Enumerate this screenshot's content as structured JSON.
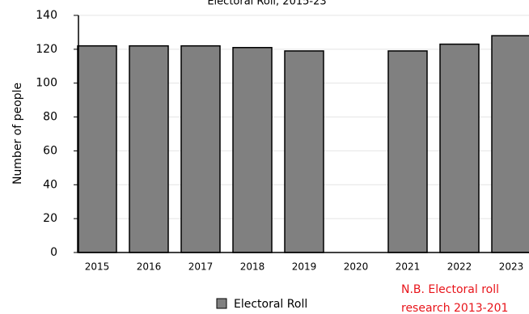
{
  "chart_data": {
    "type": "bar",
    "title": "Electoral Roll, 2015-23",
    "y_label": "Number of people",
    "categories": [
      "2015",
      "2016",
      "2017",
      "2018",
      "2019",
      "2020",
      "2021",
      "2022",
      "2023"
    ],
    "series": [
      {
        "name": "Electoral Roll",
        "color": "#808080",
        "values": [
          122,
          122,
          122,
          121,
          119,
          null,
          119,
          123,
          128
        ]
      }
    ],
    "ylim": [
      0,
      140
    ],
    "yticks": [
      0,
      20,
      40,
      60,
      80,
      100,
      120,
      140
    ],
    "grid": true,
    "annotation": [
      "N.B. Electoral roll",
      "research 2013-201"
    ]
  }
}
